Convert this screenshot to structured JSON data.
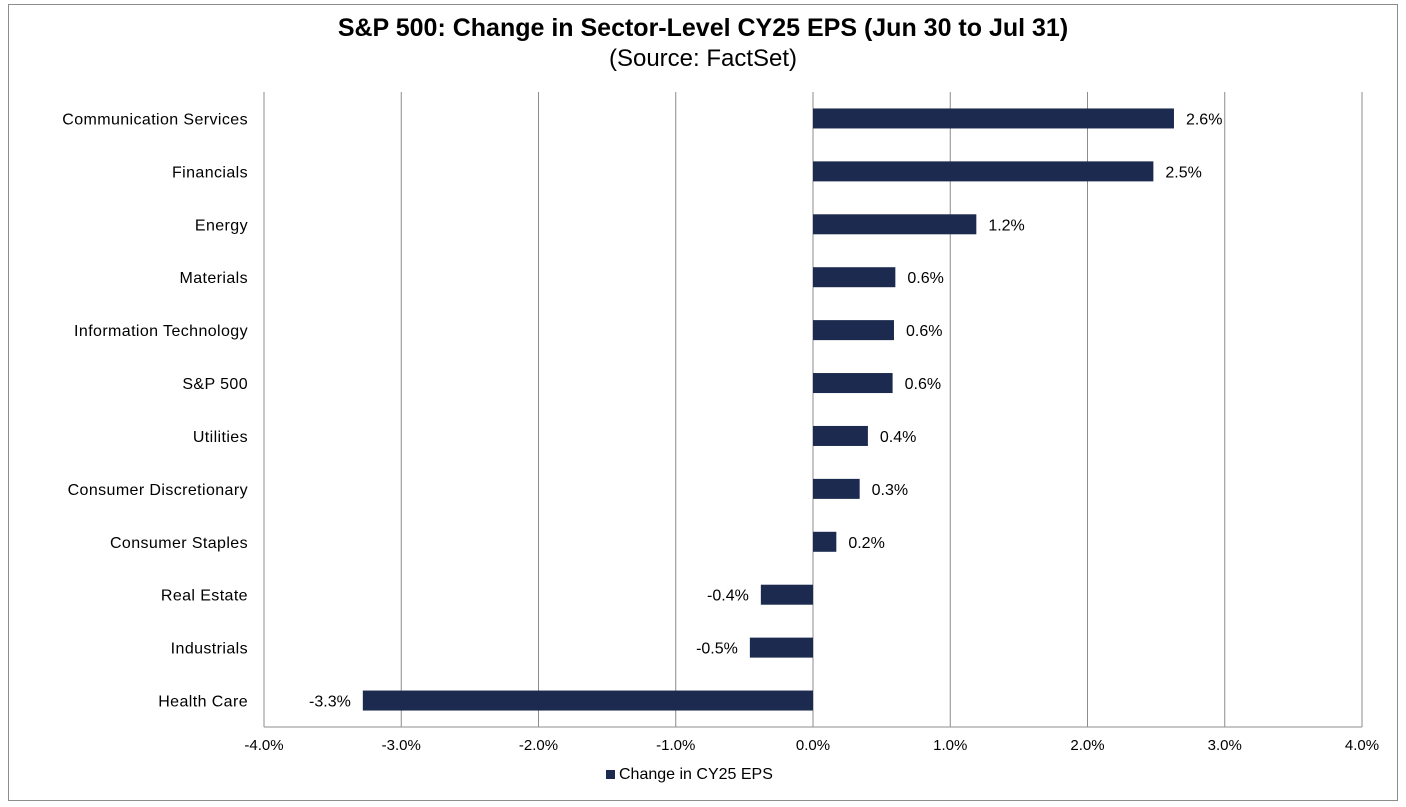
{
  "chart_data": {
    "type": "bar",
    "orientation": "horizontal",
    "title": "S&P 500: Change in Sector-Level CY25 EPS (Jun 30 to Jul 31)",
    "subtitle": "(Source: FactSet)",
    "categories": [
      "Communication Services",
      "Financials",
      "Energy",
      "Materials",
      "Information Technology",
      "S&P 500",
      "Utilities",
      "Consumer Discretionary",
      "Consumer Staples",
      "Real Estate",
      "Industrials",
      "Health Care"
    ],
    "series": [
      {
        "name": "Change in CY25 EPS",
        "values": [
          2.63,
          2.48,
          1.19,
          0.6,
          0.59,
          0.58,
          0.4,
          0.34,
          0.17,
          -0.38,
          -0.46,
          -3.28
        ],
        "labels": [
          "2.6%",
          "2.5%",
          "1.2%",
          "0.6%",
          "0.6%",
          "0.6%",
          "0.4%",
          "0.3%",
          "0.2%",
          "-0.4%",
          "-0.5%",
          "-3.3%"
        ]
      }
    ],
    "xlim": [
      -4.0,
      4.0
    ],
    "xticks": [
      -4.0,
      -3.0,
      -2.0,
      -1.0,
      0.0,
      1.0,
      2.0,
      3.0,
      4.0
    ],
    "xtick_labels": [
      "-4.0%",
      "-3.0%",
      "-2.0%",
      "-1.0%",
      "0.0%",
      "1.0%",
      "2.0%",
      "3.0%",
      "4.0%"
    ],
    "grid": "vertical",
    "legend": "bottom",
    "colors": {
      "bar": "#1b2a4e",
      "grid": "#8c8c8c",
      "text": "#000000"
    }
  }
}
